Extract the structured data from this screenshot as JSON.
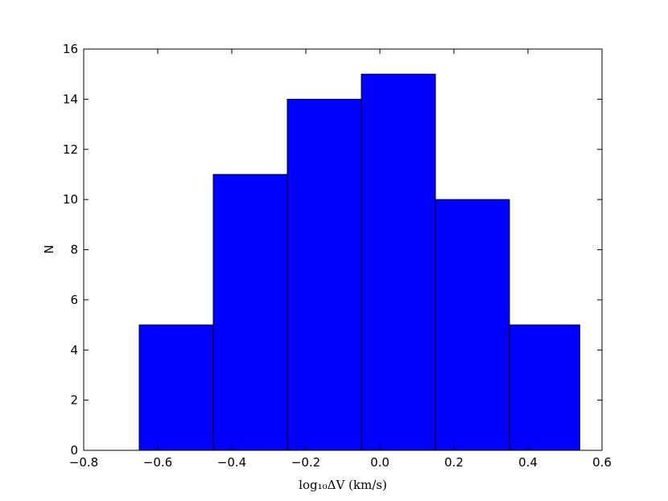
{
  "chart_data": {
    "type": "histogram",
    "x_label": "log₁₀ΔV (km/s)",
    "y_label": "N",
    "bins": [
      -0.65,
      -0.45,
      -0.25,
      -0.05,
      0.15,
      0.35,
      0.54
    ],
    "counts": [
      5,
      11,
      14,
      15,
      10,
      5
    ],
    "color": "#0000ff",
    "edgecolor": "#000000",
    "xlim": [
      -0.8,
      0.6
    ],
    "xticks": [
      {
        "value": -0.8,
        "label": "−0.8"
      },
      {
        "value": -0.6,
        "label": "−0.6"
      },
      {
        "value": -0.4,
        "label": "−0.4"
      },
      {
        "value": -0.2,
        "label": "−0.2"
      },
      {
        "value": 0,
        "label": "0.0"
      },
      {
        "value": 0.2,
        "label": "0.2"
      },
      {
        "value": 0.4,
        "label": "0.4"
      },
      {
        "value": 0.6,
        "label": "0.6"
      }
    ],
    "ylim": [
      0,
      16
    ],
    "yticks": [
      0,
      2,
      4,
      6,
      8,
      10,
      12,
      14,
      16
    ],
    "grid": false
  }
}
